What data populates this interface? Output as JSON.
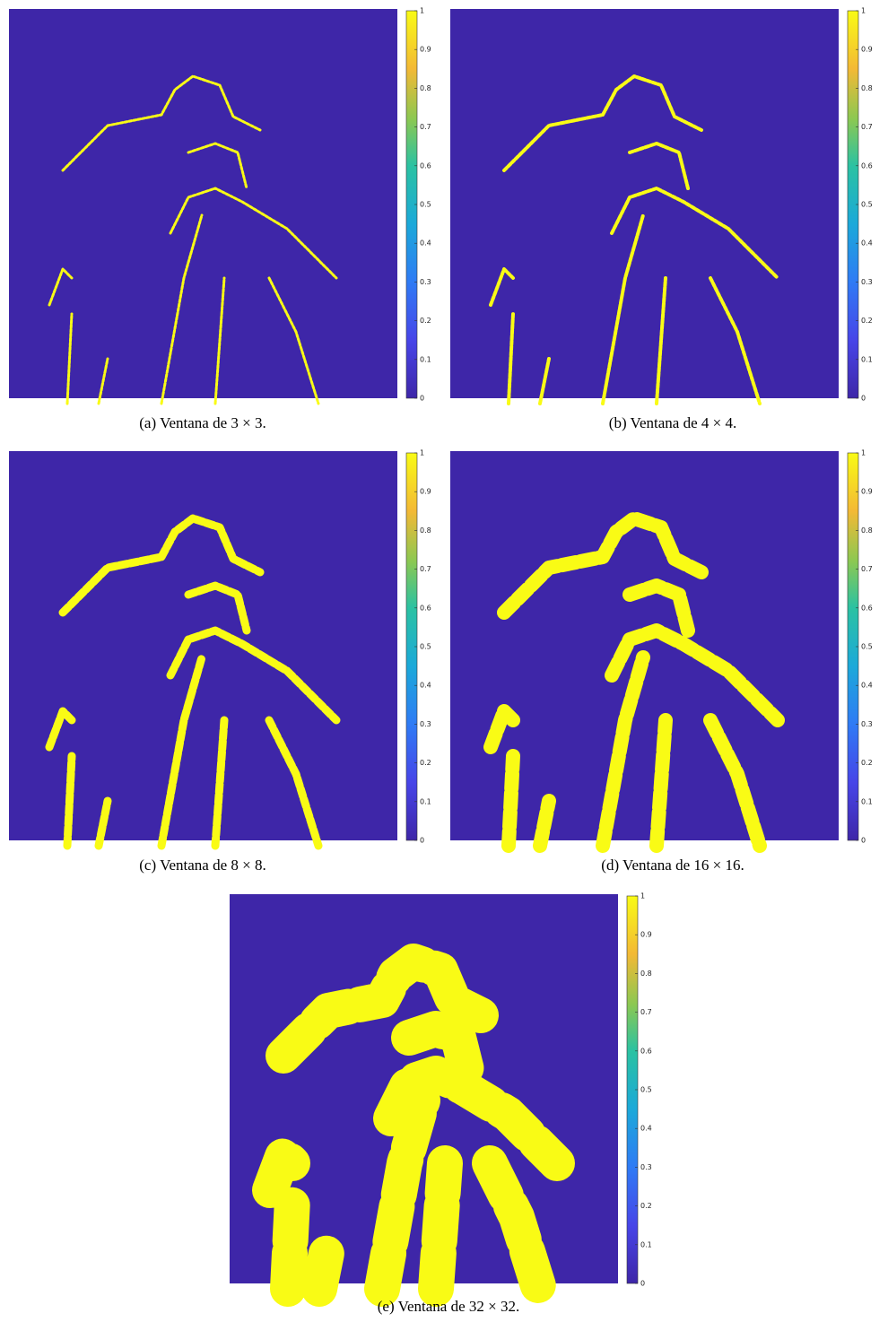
{
  "figure": {
    "panels": [
      {
        "caption": "(a) Ventana de 3 × 3.",
        "colorbar": {
          "lim": [
            0,
            1
          ],
          "ticks": [
            0,
            0.1,
            0.2,
            0.3,
            0.4,
            0.5,
            0.6,
            0.7,
            0.8,
            0.9,
            1
          ]
        }
      },
      {
        "caption": "(b) Ventana de 4 × 4.",
        "colorbar": {
          "lim": [
            0,
            1
          ],
          "ticks": [
            0,
            0.1,
            0.2,
            0.3,
            0.4,
            0.5,
            0.6,
            0.7,
            0.8,
            0.9,
            1
          ]
        }
      },
      {
        "caption": "(c) Ventana de 8 × 8.",
        "colorbar": {
          "lim": [
            0,
            1
          ],
          "ticks": [
            0,
            0.1,
            0.2,
            0.3,
            0.4,
            0.5,
            0.6,
            0.7,
            0.8,
            0.9,
            1
          ]
        }
      },
      {
        "caption": "(d) Ventana de 16 × 16.",
        "colorbar": {
          "lim": [
            0,
            1
          ],
          "ticks": [
            0,
            0.1,
            0.2,
            0.3,
            0.4,
            0.5,
            0.6,
            0.7,
            0.8,
            0.9,
            1
          ]
        }
      },
      {
        "caption": "(e) Ventana de 32 × 32.",
        "colorbar": {
          "lim": [
            0,
            1
          ],
          "ticks": [
            0,
            0.1,
            0.2,
            0.3,
            0.4,
            0.5,
            0.6,
            0.7,
            0.8,
            0.9,
            1
          ]
        }
      }
    ]
  }
}
